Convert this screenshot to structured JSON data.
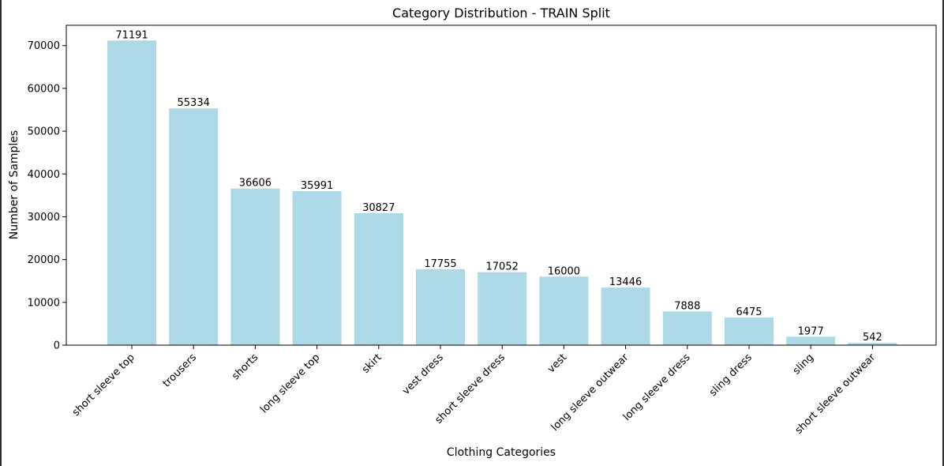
{
  "chart_data": {
    "type": "bar",
    "title": "Category Distribution - TRAIN Split",
    "xlabel": "Clothing Categories",
    "ylabel": "Number of Samples",
    "categories": [
      "short sleeve top",
      "trousers",
      "shorts",
      "long sleeve top",
      "skirt",
      "vest dress",
      "short sleeve dress",
      "vest",
      "long sleeve outwear",
      "long sleeve dress",
      "sling dress",
      "sling",
      "short sleeve outwear"
    ],
    "values": [
      71191,
      55334,
      36606,
      35991,
      30827,
      17755,
      17052,
      16000,
      13446,
      7888,
      6475,
      1977,
      542
    ],
    "ylim": [
      0,
      74750
    ],
    "yticks": [
      0,
      10000,
      20000,
      30000,
      40000,
      50000,
      60000,
      70000
    ],
    "bar_color": "#add8e6",
    "grid": false,
    "value_labels": true
  }
}
